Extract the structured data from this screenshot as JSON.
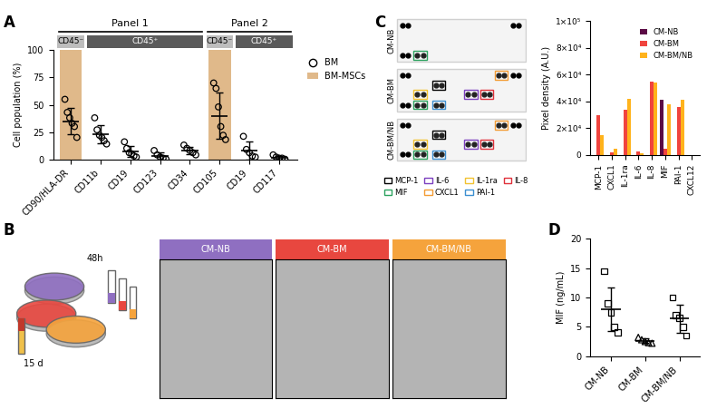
{
  "chart_data": [
    {
      "panel": "A",
      "type": "dot_plot",
      "ylabel": "Cell population (%)",
      "ylim": [
        0,
        100
      ],
      "yticks": [
        0,
        25,
        50,
        75,
        100
      ],
      "legend": "right",
      "groups": [
        {
          "title": "Panel 1",
          "subgroups": [
            {
              "label": "CD45⁻",
              "categories": [
                "CD90/HLA-DR"
              ]
            },
            {
              "label": "CD45⁺",
              "categories": [
                "CD11b",
                "CD19",
                "CD123",
                "CD34"
              ]
            }
          ]
        },
        {
          "title": "Panel 2",
          "subgroups": [
            {
              "label": "CD45⁻",
              "categories": [
                "CD105"
              ]
            },
            {
              "label": "CD45⁺",
              "categories": [
                "CD19",
                "CD117"
              ]
            }
          ]
        }
      ],
      "series": [
        {
          "name": "BM",
          "type": "scatter",
          "marker": "circle",
          "color": "#000000",
          "values": [
            [
              55,
              43,
              38,
              33,
              30,
              20
            ],
            [
              38,
              27,
              22,
              20,
              17,
              14
            ],
            [
              16,
              10,
              6,
              5,
              3,
              2
            ],
            [
              8,
              4,
              2,
              1,
              0
            ],
            [
              13,
              10,
              8,
              6,
              4
            ],
            [
              70,
              65,
              48,
              30,
              22,
              18
            ],
            [
              21,
              9,
              6,
              3,
              2
            ],
            [
              4,
              2,
              1,
              1,
              0
            ]
          ],
          "mean": [
            35,
            23,
            7,
            3,
            8,
            40,
            8,
            1.5
          ],
          "error": [
            12,
            8,
            5,
            3,
            3,
            21,
            8,
            1.5
          ]
        },
        {
          "name": "BM-MSCs",
          "type": "bar",
          "color": "#e0b98a",
          "values": [
            100,
            null,
            null,
            null,
            null,
            100,
            null,
            null
          ]
        }
      ]
    },
    {
      "type": "bar",
      "ylabel": "Pixel density (A.U.)",
      "categories": [
        "MCP-1",
        "CXCL1",
        "IL-1ra",
        "IL-6",
        "IL-8",
        "MIF",
        "PAI-1",
        "CXCL12"
      ],
      "ylim": [
        0,
        100000
      ],
      "yticks": [
        0,
        {
          "value": 20000,
          "label": "2×10⁴"
        },
        {
          "value": 40000,
          "label": "4×10⁴"
        },
        {
          "value": 60000,
          "label": "6×10⁴"
        },
        {
          "value": 80000,
          "label": "8×10⁴"
        },
        {
          "value": 100000,
          "label": "1×10⁵"
        }
      ],
      "legend": "upper right",
      "series": [
        {
          "name": "CM-NB",
          "color": "#5b0a45",
          "values": [
            0,
            0,
            0,
            0,
            0,
            41000,
            0,
            0
          ]
        },
        {
          "name": "CM-BM",
          "color": "#f0443e",
          "values": [
            30000,
            2000,
            34000,
            2500,
            55000,
            5000,
            36000,
            0
          ]
        },
        {
          "name": "CM-BM/NB",
          "color": "#ffb31c",
          "values": [
            15000,
            5000,
            42000,
            1500,
            54000,
            38000,
            41000,
            0
          ]
        }
      ]
    },
    {
      "panel": "D",
      "type": "dot_plot",
      "ylabel": "MIF (ng/mL)",
      "ylim": [
        0,
        20
      ],
      "yticks": [
        0,
        5,
        10,
        15,
        20
      ],
      "groups": [
        {
          "category": "CM-NB",
          "marker": "square",
          "values": [
            14.5,
            9,
            7.5,
            5,
            4
          ],
          "mean": 8,
          "error": 3.7
        },
        {
          "category": "CM-BM",
          "marker": "triangle",
          "values": [
            3.2,
            2.8,
            2.5,
            2.3,
            2.2
          ],
          "mean": 2.6,
          "error": 0.4
        },
        {
          "category": "CM-BM/NB",
          "marker": "square",
          "values": [
            10,
            7,
            6.5,
            5,
            3.5
          ],
          "mean": 6.4,
          "error": 2.4
        }
      ]
    }
  ],
  "diagrams": [
    {
      "panel": "B",
      "labels": [
        "15 d",
        "48h"
      ],
      "conditions": [
        {
          "label": "CM-NB",
          "color": "#8f6fc1"
        },
        {
          "label": "CM-BM",
          "color": "#e8473f"
        },
        {
          "label": "CM-BM/NB",
          "color": "#f5a33c"
        }
      ]
    },
    {
      "panel": "C",
      "rows": [
        {
          "label": "CM-NB",
          "spots": [
            "MIF"
          ]
        },
        {
          "label": "CM-BM",
          "spots": [
            "MCP-1",
            "CXCL1",
            "IL-1ra",
            "IL-6",
            "IL-8",
            "MIF",
            "PAI-1"
          ]
        },
        {
          "label": "CM-BM/NB",
          "spots": [
            "MCP-1",
            "CXCL1",
            "IL-1ra",
            "IL-6",
            "IL-8",
            "MIF",
            "PAI-1"
          ]
        }
      ],
      "legend": [
        {
          "name": "MCP-1",
          "color": "#000000"
        },
        {
          "name": "MIF",
          "color": "#2ca25f"
        },
        {
          "name": "IL-6",
          "color": "#7b3fbf"
        },
        {
          "name": "CXCL1",
          "color": "#f39c34"
        },
        {
          "name": "IL-1ra",
          "color": "#f2c230"
        },
        {
          "name": "PAI-1",
          "color": "#3d8fd1"
        },
        {
          "name": "IL-8",
          "color": "#e0303a"
        }
      ]
    }
  ]
}
